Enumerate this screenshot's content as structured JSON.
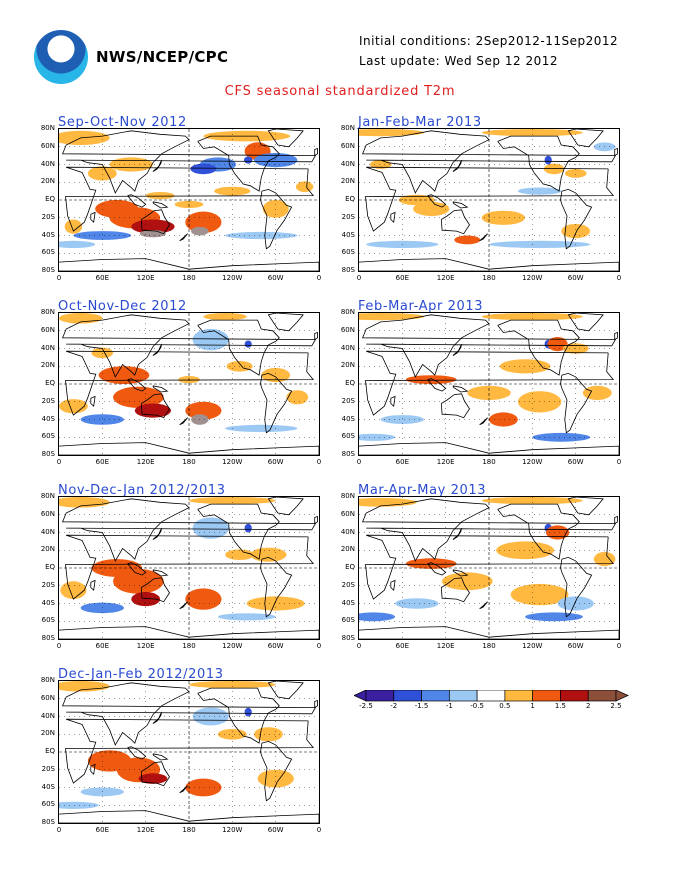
{
  "header": {
    "agency": "NWS/NCEP/CPC",
    "initial_conditions": "Initial conditions: 2Sep2012-11Sep2012",
    "last_update": "Last update: Wed Sep 12 2012",
    "title": "CFS seasonal standardized T2m"
  },
  "axes": {
    "lat_labels": [
      "80N",
      "60N",
      "40N",
      "20N",
      "EQ",
      "20S",
      "40S",
      "60S",
      "80S"
    ],
    "lon_labels": [
      "0",
      "60E",
      "120E",
      "180",
      "120W",
      "60W",
      "0"
    ]
  },
  "panels": [
    {
      "title": "Sep-Oct-Nov 2012"
    },
    {
      "title": "Jan-Feb-Mar 2013"
    },
    {
      "title": "Oct-Nov-Dec 2012"
    },
    {
      "title": "Feb-Mar-Apr 2013"
    },
    {
      "title": "Nov-Dec-Jan 2012/2013"
    },
    {
      "title": "Mar-Apr-May 2013"
    },
    {
      "title": "Dec-Jan-Feb 2012/2013"
    }
  ],
  "legend": {
    "ticks": [
      "-2.5",
      "-2",
      "-1.5",
      "-1",
      "-0.5",
      "0.5",
      "1",
      "1.5",
      "2",
      "2.5"
    ],
    "colors": [
      "#3a1fa0",
      "#2f50d8",
      "#4f86e8",
      "#9cc8f4",
      "#ffffff",
      "#ffb840",
      "#f05a10",
      "#b01010",
      "#8b4f3a"
    ]
  },
  "colors": {
    "warm": "#ffb840",
    "hot": "#f05a10",
    "very_hot": "#b01010",
    "extreme": "#a09090",
    "cool": "#9cc8f4",
    "cold": "#4f86e8",
    "very_cold": "#2f50d8",
    "title_blue": "#2a4bd0",
    "title_red": "#e02020"
  }
}
